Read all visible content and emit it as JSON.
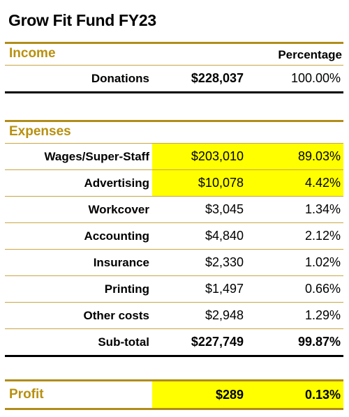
{
  "title": "Grow Fit Fund FY23",
  "income": {
    "label": "Income",
    "column_header": "Percentage",
    "rows": [
      {
        "category": "Donations",
        "amount": "$228,037",
        "percentage": "100.00%"
      }
    ]
  },
  "expenses": {
    "label": "Expenses",
    "rows": [
      {
        "category": "Wages/Super-Staff",
        "amount": "$203,010",
        "percentage": "89.03%"
      },
      {
        "category": "Advertising",
        "amount": "$10,078",
        "percentage": "4.42%"
      },
      {
        "category": "Workcover",
        "amount": "$3,045",
        "percentage": "1.34%"
      },
      {
        "category": "Accounting",
        "amount": "$4,840",
        "percentage": "2.12%"
      },
      {
        "category": "Insurance",
        "amount": "$2,330",
        "percentage": "1.02%"
      },
      {
        "category": "Printing",
        "amount": "$1,497",
        "percentage": "0.66%"
      },
      {
        "category": "Other costs",
        "amount": "$2,948",
        "percentage": "1.29%"
      }
    ],
    "subtotal": {
      "category": "Sub-total",
      "amount": "$227,749",
      "percentage": "99.87%"
    }
  },
  "profit": {
    "label": "Profit",
    "amount": "$289",
    "percentage": "0.13%"
  },
  "colors": {
    "accent": "#b8900f",
    "highlight": "#ffff00"
  }
}
